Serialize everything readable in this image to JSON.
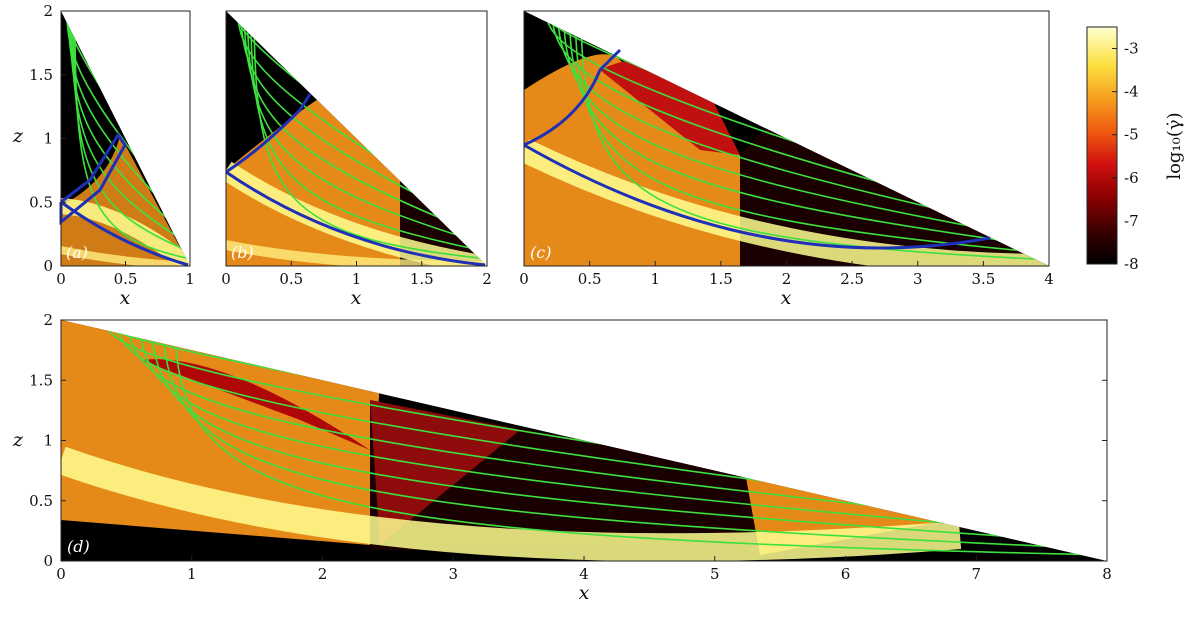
{
  "colors": {
    "streamline": "#3ee03e",
    "boundary": "#1f2fb8",
    "colormap": [
      "#000000",
      "#3a0000",
      "#8b0000",
      "#d01010",
      "#f05a10",
      "#f5a020",
      "#fde040",
      "#ffffd0"
    ]
  },
  "colorbar": {
    "label": "log₁₀(γ̇)",
    "ticks": [
      "-3",
      "-4",
      "-5",
      "-6",
      "-7",
      "-8"
    ],
    "values": [
      -3,
      -4,
      -5,
      -6,
      -7,
      -8
    ],
    "range": [
      -8,
      -2.5
    ]
  },
  "chart_data": [
    {
      "panel": "(a)",
      "type": "heatmap",
      "xlabel": "x",
      "ylabel": "z",
      "xlim": [
        0,
        1
      ],
      "ylim": [
        0,
        2
      ],
      "xticks": [
        "0",
        "0.5",
        "1"
      ],
      "xtick_values": [
        0,
        0.5,
        1
      ],
      "yticks": [
        "0",
        "0.5",
        "1",
        "1.5",
        "2"
      ],
      "ytick_values": [
        0,
        0.5,
        1,
        1.5,
        2
      ],
      "domain_edge": [
        [
          0,
          2
        ],
        [
          1,
          0
        ]
      ],
      "yield_surface": [
        [
          0,
          0.5
        ],
        [
          0.3,
          0.3
        ],
        [
          0.6,
          0.1
        ],
        [
          1,
          0
        ]
      ],
      "streamlines_count": 7
    },
    {
      "panel": "(b)",
      "type": "heatmap",
      "xlabel": "x",
      "ylabel": "",
      "xlim": [
        0,
        2
      ],
      "ylim": [
        0,
        2
      ],
      "xticks": [
        "0",
        "0.5",
        "1",
        "1.5",
        "2"
      ],
      "xtick_values": [
        0,
        0.5,
        1,
        1.5,
        2
      ],
      "yticks": [],
      "ytick_values": [],
      "domain_edge": [
        [
          0,
          2
        ],
        [
          2,
          0
        ]
      ],
      "yield_surface": [
        [
          0,
          0.72
        ],
        [
          0.6,
          0.3
        ],
        [
          1.2,
          0.1
        ],
        [
          2,
          0
        ]
      ],
      "streamlines_count": 7
    },
    {
      "panel": "(c)",
      "type": "heatmap",
      "xlabel": "x",
      "ylabel": "",
      "xlim": [
        0,
        4
      ],
      "ylim": [
        0,
        2
      ],
      "xticks": [
        "0",
        "0.5",
        "1",
        "1.5",
        "2",
        "2.5",
        "3",
        "3.5",
        "4"
      ],
      "xtick_values": [
        0,
        0.5,
        1,
        1.5,
        2,
        2.5,
        3,
        3.5,
        4
      ],
      "yticks": [],
      "ytick_values": [],
      "domain_edge": [
        [
          0,
          2
        ],
        [
          4,
          0
        ]
      ],
      "yield_surface": [
        [
          0,
          0.92
        ],
        [
          0.8,
          0.4
        ],
        [
          2,
          0.05
        ],
        [
          3.6,
          0.22
        ]
      ],
      "streamlines_count": 8
    },
    {
      "panel": "(d)",
      "type": "heatmap",
      "xlabel": "x",
      "ylabel": "z",
      "xlim": [
        0,
        8
      ],
      "ylim": [
        0,
        2
      ],
      "xticks": [
        "0",
        "1",
        "2",
        "3",
        "4",
        "5",
        "6",
        "7",
        "8"
      ],
      "xtick_values": [
        0,
        1,
        2,
        3,
        4,
        5,
        6,
        7,
        8
      ],
      "yticks": [
        "0",
        "0.5",
        "1",
        "1.5",
        "2"
      ],
      "ytick_values": [
        0,
        0.5,
        1,
        1.5,
        2
      ],
      "domain_edge": [
        [
          0,
          2
        ],
        [
          8,
          0
        ]
      ],
      "yield_surface": [],
      "streamlines_count": 8
    }
  ]
}
